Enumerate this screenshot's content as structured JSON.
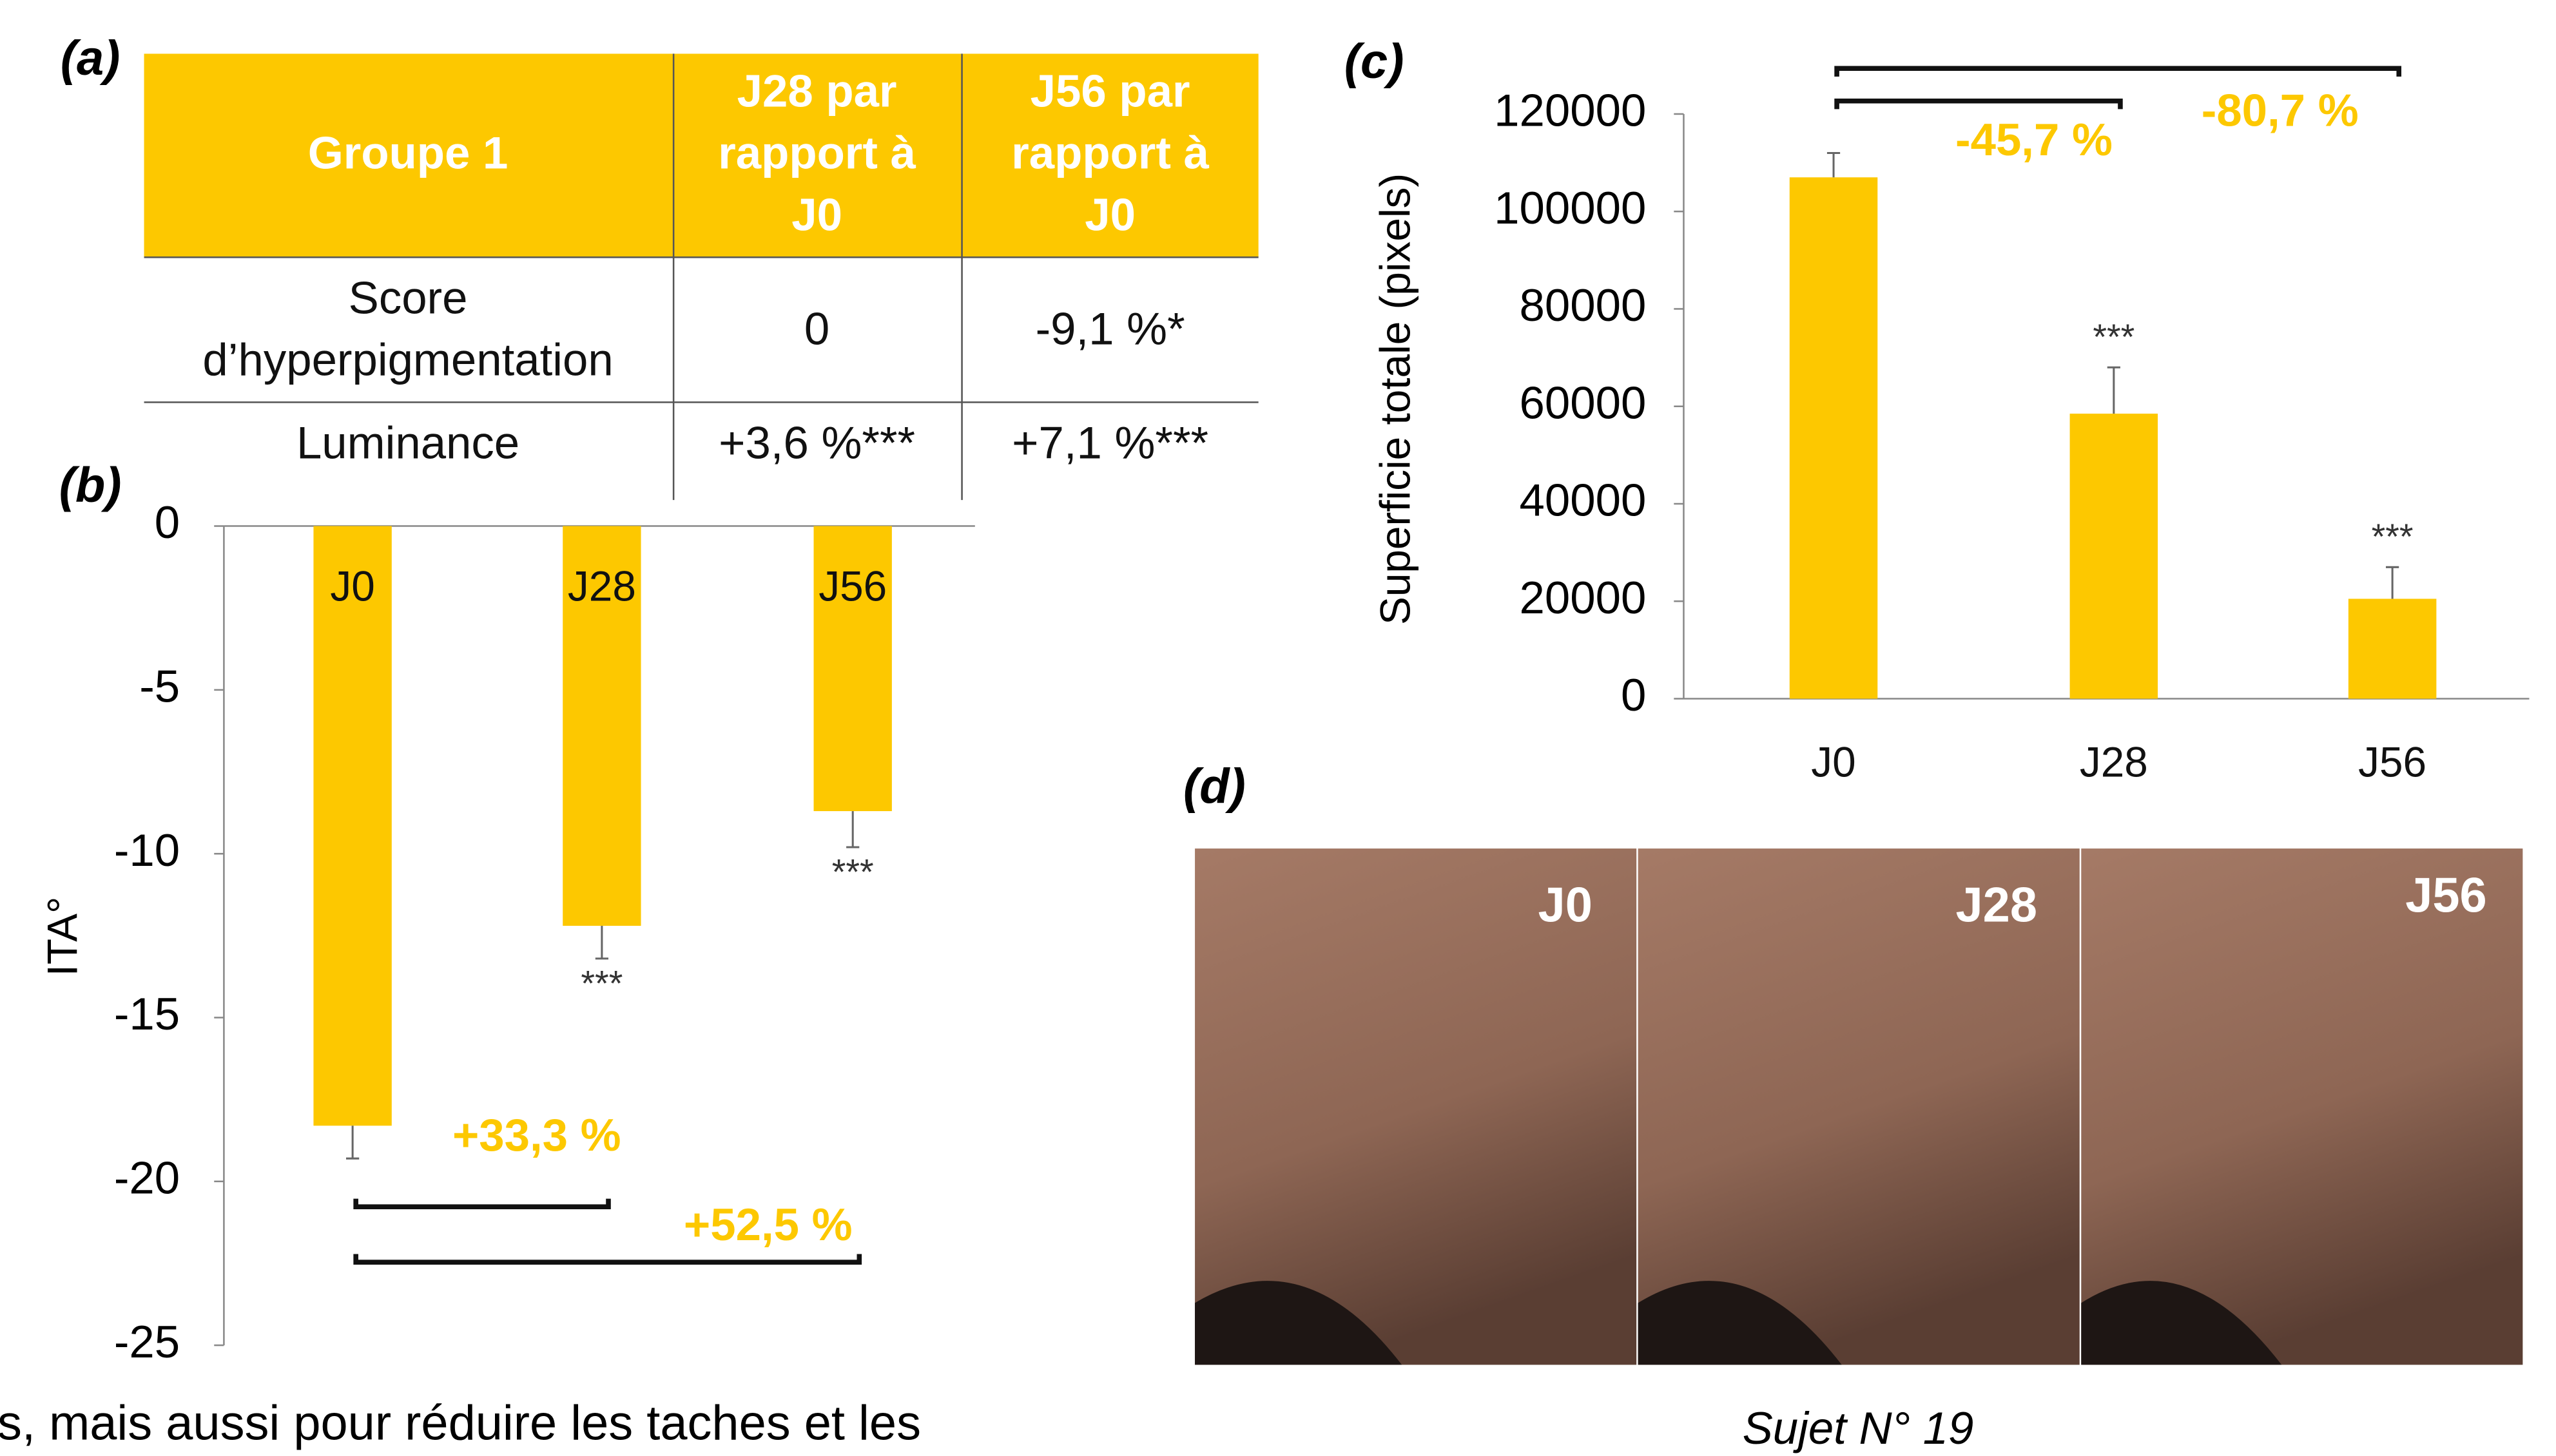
{
  "table": {
    "panel_label": "(a)",
    "header": [
      [
        "Groupe 1"
      ],
      [
        "J28 par",
        "rapport à",
        "J0"
      ],
      [
        "J56 par",
        "rapport à",
        "J0"
      ]
    ],
    "rows": [
      [
        [
          "Score",
          "d’hyperpigmentation"
        ],
        [
          "0"
        ],
        [
          "-9,1 %*"
        ]
      ],
      [
        [
          "Luminance"
        ],
        [
          "+3,6 %***"
        ],
        [
          "+7,1 %***"
        ]
      ]
    ]
  },
  "chart_data": [
    {
      "type": "bar",
      "panel_label": "(b)",
      "ylabel": "ITA°",
      "categories": [
        "J0",
        "J28",
        "J56"
      ],
      "values": [
        -18.3,
        -12.2,
        -8.7
      ],
      "errors": [
        1.0,
        1.0,
        1.1
      ],
      "color": "#fdc800",
      "ylim": [
        -25,
        0
      ],
      "yticks": [
        0,
        -5,
        -10,
        -15,
        -20,
        -25
      ],
      "significance": [
        null,
        "***",
        "***"
      ],
      "comparisons": [
        {
          "from": "J0",
          "to": "J28",
          "label": "+33,3 %"
        },
        {
          "from": "J0",
          "to": "J56",
          "label": "+52,5 %"
        }
      ]
    },
    {
      "type": "bar",
      "panel_label": "(c)",
      "ylabel": "Superficie totale (pixels)",
      "categories": [
        "J0",
        "J28",
        "J56"
      ],
      "values": [
        107000,
        58500,
        20500
      ],
      "errors": [
        5000,
        9500,
        6500
      ],
      "color": "#fdc800",
      "ylim": [
        0,
        120000
      ],
      "yticks": [
        0,
        20000,
        40000,
        60000,
        80000,
        100000,
        120000
      ],
      "significance": [
        null,
        "***",
        "***"
      ],
      "comparisons": [
        {
          "from": "J0",
          "to": "J28",
          "label": "-45,7 %"
        },
        {
          "from": "J0",
          "to": "J56",
          "label": "-80,7 %"
        }
      ]
    }
  ],
  "photos": {
    "panel_label": "(d)",
    "labels": [
      "J0",
      "J28",
      "J56"
    ],
    "caption": "Sujet N° 19"
  },
  "footer_text": "s, mais aussi pour réduire les taches et les"
}
